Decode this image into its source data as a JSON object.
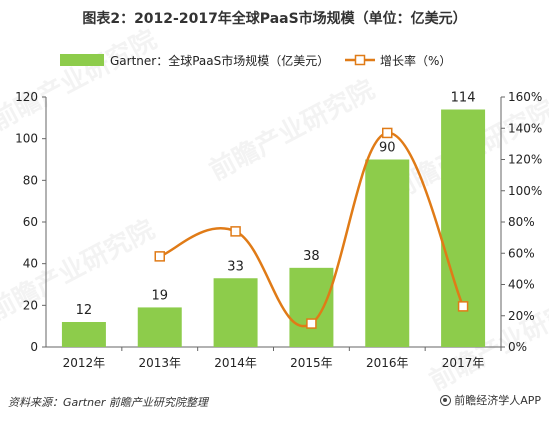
{
  "chart_data": {
    "type": "bar+line",
    "title": "图表2：2012-2017年全球PaaS市场规模（单位：亿美元）",
    "categories": [
      "2012年",
      "2013年",
      "2014年",
      "2015年",
      "2016年",
      "2017年"
    ],
    "series": [
      {
        "name": "Gartner：全球PaaS市场规模（亿美元）",
        "type": "bar",
        "axis": "left",
        "values": [
          12,
          19,
          33,
          38,
          90,
          114
        ],
        "data_labels": [
          "12",
          "19",
          "33",
          "38",
          "90",
          "114"
        ],
        "color": "#8dcc4b"
      },
      {
        "name": "增长率（%）",
        "type": "line",
        "axis": "right",
        "values": [
          null,
          58,
          74,
          15,
          137,
          26
        ],
        "color": "#e07b17"
      }
    ],
    "y_left": {
      "min": 0,
      "max": 120,
      "ticks": [
        "0",
        "20",
        "40",
        "60",
        "80",
        "100",
        "120"
      ]
    },
    "y_right": {
      "min": 0,
      "max": 160,
      "ticks": [
        "0%",
        "20%",
        "40%",
        "60%",
        "80%",
        "100%",
        "120%",
        "140%",
        "160%"
      ]
    },
    "legend_position": "top",
    "grid": false
  },
  "footer": {
    "source": "资料来源：Gartner 前瞻产业研究院整理",
    "brand": "前瞻经济学人APP"
  },
  "watermark_text": "前瞻产业研究院"
}
